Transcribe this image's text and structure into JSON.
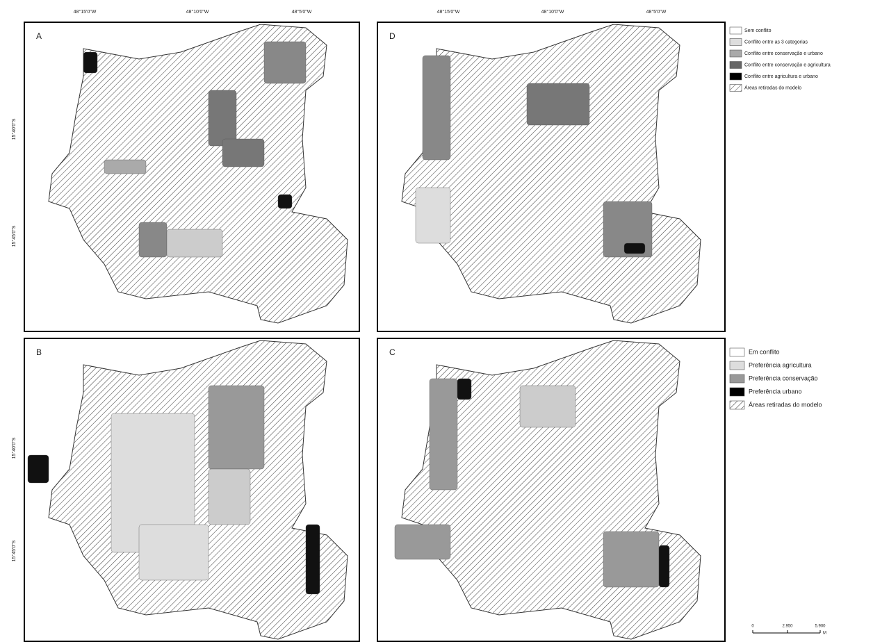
{
  "graticule": {
    "top_left": [
      "48°15'0\"W",
      "48°10'0\"W",
      "48°5'0\"W"
    ],
    "top_right": [
      "48°15'0\"W",
      "48°10'0\"W",
      "48°5'0\"W"
    ],
    "left_top": [
      "15°40'0\"S",
      "15°45'0\"S"
    ],
    "left_bottom": [
      "15°40'0\"S",
      "15°45'0\"S"
    ]
  },
  "panels": [
    {
      "label": "A"
    },
    {
      "label": "D"
    },
    {
      "label": "B"
    },
    {
      "label": "C"
    }
  ],
  "legend_conflict": {
    "items": [
      "Sem conflito",
      "Conflito entre as 3 categorias",
      "Conflito entre conservação e urbano",
      "Conflito entre conservação e agricultura",
      "Conflito entre agricultura e urbano",
      "Áreas retiradas do modelo"
    ]
  },
  "legend_preference": {
    "items": [
      "Em conflito",
      "Preferência agricultura",
      "Preferência conservação",
      "Preferência urbano",
      "Áreas retiradas do modelo"
    ]
  },
  "scale_bar": {
    "labels": [
      "0",
      "2.950",
      "5.900"
    ],
    "unit": "M"
  }
}
